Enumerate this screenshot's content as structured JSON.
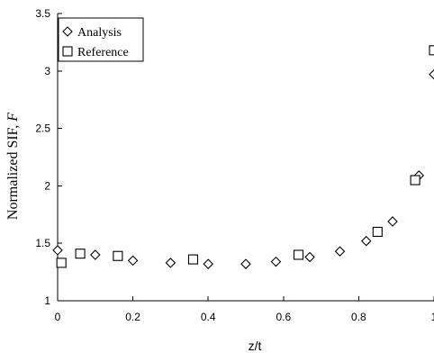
{
  "chart_data": {
    "type": "scatter",
    "title": "",
    "xlabel": "z/t",
    "ylabel": "Normalized SIF, ",
    "ylabel_symbol": "F",
    "xlim": [
      0,
      1
    ],
    "ylim": [
      1,
      3.5
    ],
    "x_ticks": [
      "0",
      "0.2",
      "0.4",
      "0.6",
      "0.8",
      "1"
    ],
    "y_ticks": [
      "1",
      "1.5",
      "2",
      "2.5",
      "3",
      "3.5"
    ],
    "grid": false,
    "legend_position": "top-left",
    "series": [
      {
        "name": "Analysis",
        "marker": "diamond",
        "x": [
          0.0,
          0.1,
          0.2,
          0.3,
          0.4,
          0.5,
          0.58,
          0.67,
          0.75,
          0.82,
          0.89,
          0.96,
          1.0
        ],
        "y": [
          1.44,
          1.4,
          1.35,
          1.33,
          1.32,
          1.32,
          1.34,
          1.38,
          1.43,
          1.52,
          1.69,
          2.09,
          2.97
        ]
      },
      {
        "name": "Reference",
        "marker": "square",
        "x": [
          0.01,
          0.06,
          0.16,
          0.36,
          0.64,
          0.85,
          0.95,
          1.0
        ],
        "y": [
          1.33,
          1.41,
          1.39,
          1.36,
          1.4,
          1.6,
          2.05,
          3.18
        ]
      }
    ]
  }
}
